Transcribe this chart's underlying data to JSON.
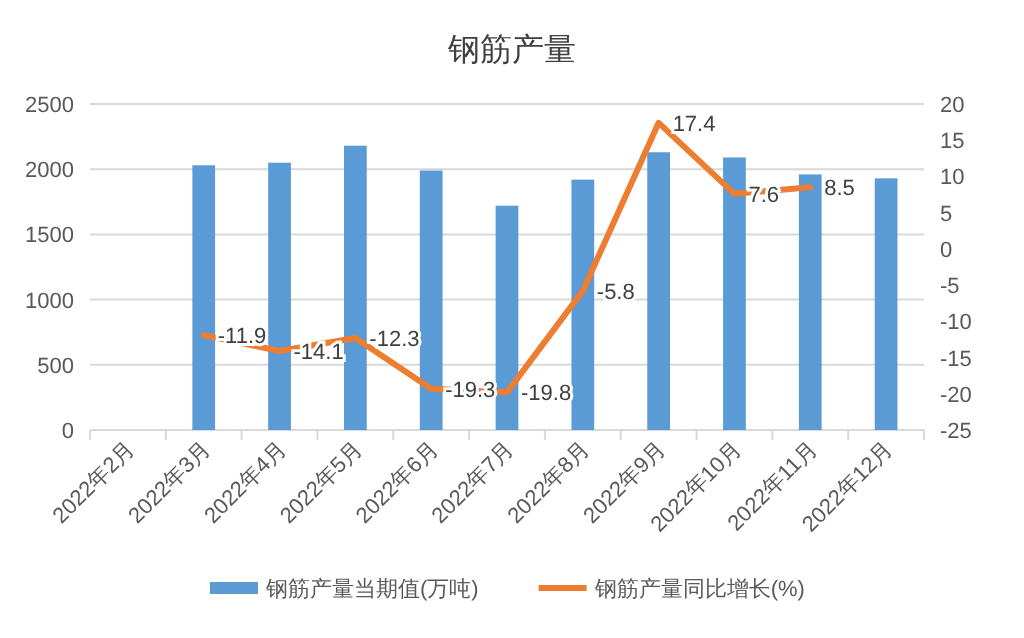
{
  "chart_data": {
    "type": "bar",
    "title": "钢筋产量",
    "categories": [
      "2022年2月",
      "2022年3月",
      "2022年4月",
      "2022年5月",
      "2022年6月",
      "2022年7月",
      "2022年8月",
      "2022年9月",
      "2022年10月",
      "2022年11月",
      "2022年12月"
    ],
    "series": [
      {
        "name": "钢筋产量当期值(万吨)",
        "color": "#5b9bd5",
        "values": [
          null,
          2030,
          2050,
          2180,
          1990,
          1720,
          1920,
          2130,
          2090,
          1960,
          1930
        ]
      },
      {
        "name": "钢筋产量同比增长(%)",
        "type": "line",
        "axis": "y2",
        "color": "#ed7d31",
        "values": [
          null,
          -11.9,
          -14.1,
          -12.3,
          -19.3,
          -19.8,
          -5.8,
          17.4,
          7.6,
          8.5,
          null
        ],
        "value_labels": [
          null,
          "-11.9",
          "-14.1",
          "-12.3",
          "-19.3",
          "-19.8",
          "-5.8",
          "17.4",
          "7.6",
          "8.5",
          null
        ]
      }
    ],
    "ylim": [
      0,
      2500
    ],
    "yticks": [
      0,
      500,
      1000,
      1500,
      2000,
      2500
    ],
    "y2lim": [
      -25,
      20
    ],
    "y2ticks": [
      -25,
      -20,
      -15,
      -10,
      -5,
      0,
      5,
      10,
      15,
      20
    ],
    "grid": "y",
    "legend": "bottom"
  }
}
